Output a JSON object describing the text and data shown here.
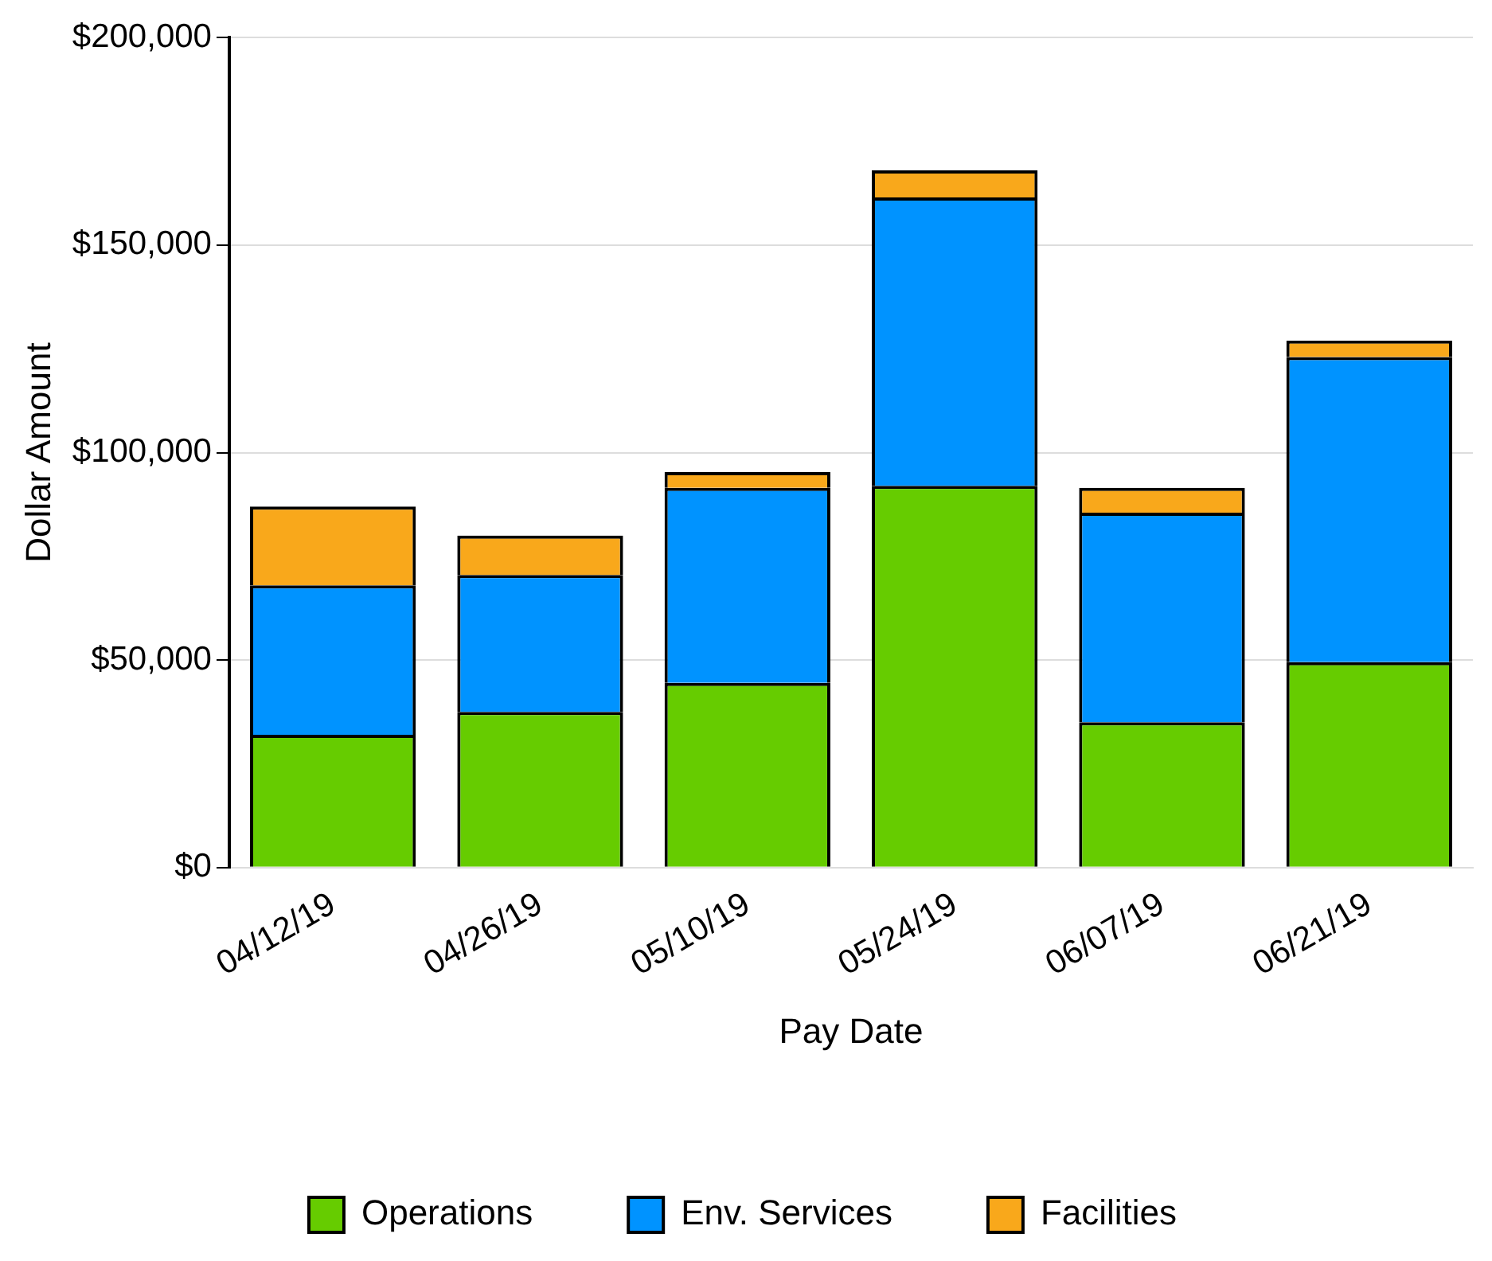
{
  "chart_data": {
    "type": "bar",
    "stacked": true,
    "xlabel": "Pay Date",
    "ylabel": "Dollar Amount",
    "categories": [
      "04/12/19",
      "04/26/19",
      "05/10/19",
      "05/24/19",
      "06/07/19",
      "06/21/19"
    ],
    "series": [
      {
        "name": "Operations",
        "color": "#66cc00",
        "values": [
          32000,
          37500,
          44500,
          92000,
          35000,
          49500
        ]
      },
      {
        "name": "Env. Services",
        "color": "#0093ff",
        "values": [
          36000,
          33000,
          47000,
          69500,
          50500,
          73500
        ]
      },
      {
        "name": "Facilities",
        "color": "#f9a81b",
        "values": [
          19000,
          9500,
          3800,
          6500,
          6000,
          4000
        ]
      }
    ],
    "ylim": [
      0,
      200000
    ],
    "yticks": [
      {
        "value": 0,
        "label": "$0"
      },
      {
        "value": 50000,
        "label": "$50,000"
      },
      {
        "value": 100000,
        "label": "$100,000"
      },
      {
        "value": 150000,
        "label": "$150,000"
      },
      {
        "value": 200000,
        "label": "$200,000"
      }
    ],
    "grid": "y",
    "legend": "bottom"
  }
}
